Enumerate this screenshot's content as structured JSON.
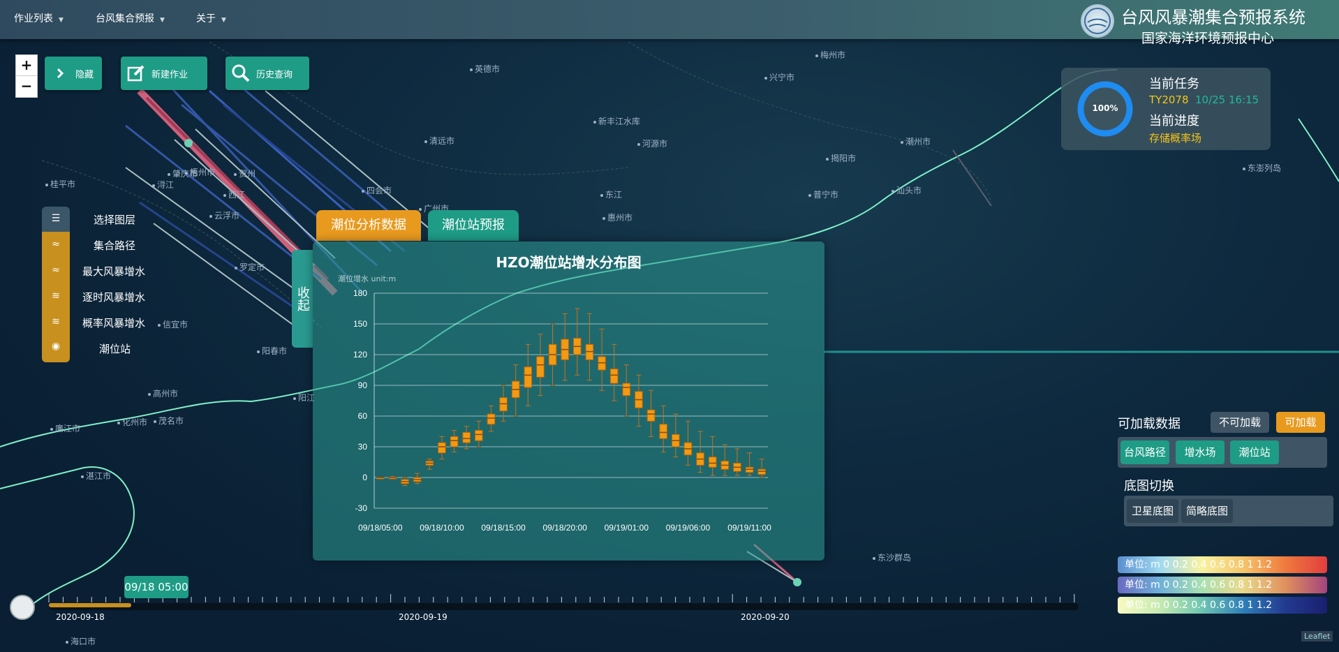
{
  "header": {
    "menus": [
      {
        "label": "作业列表"
      },
      {
        "label": "台风集合预报"
      },
      {
        "label": "关于"
      }
    ],
    "title": "台风风暴潮集合预报系统",
    "subtitle": "国家海洋环境预报中心"
  },
  "zoom": {
    "in": "+",
    "out": "−"
  },
  "actions": {
    "hide": "隐藏",
    "new_job": "新建作业",
    "history": "历史查询"
  },
  "layers": {
    "title": "选择图层",
    "items": [
      "集合路径",
      "最大风暴增水",
      "逐时风暴增水",
      "概率风暴增水",
      "潮位站"
    ]
  },
  "tabs": {
    "analysis": "潮位分析数据",
    "forecast": "潮位站预报"
  },
  "collapse": {
    "label": "收起"
  },
  "chart_data": {
    "type": "boxplot",
    "title": "HZO潮位站增水分布图",
    "ylabel": "潮位增水 unit:m",
    "ylim": [
      -30,
      180
    ],
    "yticks": [
      "180",
      "150",
      "120",
      "90",
      "60",
      "30",
      "0",
      "-30"
    ],
    "xticks": [
      "09/18/05:00",
      "09/18/10:00",
      "09/18/15:00",
      "09/18/20:00",
      "09/19/01:00",
      "09/19/06:00",
      "09/19/11:00"
    ],
    "series": [
      {
        "values": [
          [
            0,
            0,
            0,
            0,
            0
          ],
          [
            -1,
            -1,
            0,
            0,
            1
          ],
          [
            -8,
            -6,
            -4,
            -2,
            0
          ],
          [
            -6,
            -4,
            -2,
            0,
            4
          ],
          [
            8,
            12,
            14,
            16,
            18
          ],
          [
            18,
            24,
            30,
            34,
            40
          ],
          [
            25,
            30,
            36,
            40,
            46
          ],
          [
            28,
            34,
            38,
            44,
            50
          ],
          [
            30,
            36,
            42,
            46,
            55
          ],
          [
            45,
            52,
            58,
            62,
            70
          ],
          [
            55,
            65,
            72,
            78,
            90
          ],
          [
            60,
            78,
            86,
            94,
            110
          ],
          [
            70,
            88,
            100,
            108,
            130
          ],
          [
            80,
            98,
            110,
            118,
            140
          ],
          [
            90,
            110,
            120,
            130,
            150
          ],
          [
            95,
            115,
            125,
            135,
            160
          ],
          [
            100,
            120,
            128,
            136,
            165
          ],
          [
            95,
            115,
            123,
            130,
            160
          ],
          [
            85,
            105,
            112,
            118,
            145
          ],
          [
            75,
            92,
            100,
            106,
            130
          ],
          [
            60,
            80,
            88,
            92,
            110
          ],
          [
            50,
            68,
            76,
            84,
            100
          ],
          [
            40,
            55,
            62,
            66,
            85
          ],
          [
            25,
            38,
            44,
            52,
            70
          ],
          [
            20,
            30,
            36,
            42,
            62
          ],
          [
            12,
            22,
            28,
            34,
            55
          ],
          [
            5,
            12,
            18,
            24,
            45
          ],
          [
            2,
            10,
            14,
            20,
            40
          ],
          [
            2,
            8,
            12,
            16,
            32
          ],
          [
            2,
            6,
            10,
            14,
            28
          ],
          [
            2,
            5,
            8,
            10,
            24
          ],
          [
            0,
            3,
            6,
            8,
            18
          ]
        ]
      }
    ],
    "color": "#f29a12",
    "grid": true
  },
  "task": {
    "percent": "100%",
    "title": "当前任务",
    "job_id": "TY2078",
    "job_time": "10/25 16:15",
    "progress_title": "当前进度",
    "progress_status": "存储概率场"
  },
  "loadable": {
    "title": "可加载数据",
    "not_loadable": "不可加载",
    "loadable": "可加载",
    "items": [
      "台风路径",
      "增水场",
      "潮位站"
    ]
  },
  "basemap": {
    "title": "底图切换",
    "items": [
      "卫星底图",
      "简略底图"
    ]
  },
  "legends": [
    {
      "text": "单位: m  0  0.2  0.4  0.6  0.8  1  1.2"
    },
    {
      "text": "单位: m  0  0.2  0.4  0.6  0.8  1  1.2"
    },
    {
      "text": "单位: m  0  0.2  0.4  0.6  0.8  1  1.2"
    }
  ],
  "timeline": {
    "current": "09/18 05:00",
    "dates": [
      "2020-09-18",
      "2020-09-19",
      "2020-09-20"
    ],
    "progress": 0.08
  },
  "map_labels": [
    "梅州市",
    "兴宁市",
    "英德市",
    "新丰江水库",
    "河源市",
    "清远市",
    "潮州市",
    "揭阳市",
    "汕头市",
    "普宁市",
    "四会市",
    "东江",
    "惠州市",
    "广州市",
    "肇庆市",
    "云浮市",
    "罗定市",
    "信宜市",
    "阳春市",
    "高州市",
    "化州市",
    "茂名市",
    "廉江市",
    "湛江市",
    "阳江",
    "东沙群岛",
    "海口市",
    "桂平市",
    "浔江",
    "梧州市",
    "西江",
    "贺州",
    "东澎列岛"
  ],
  "attribution": "Leaflet"
}
